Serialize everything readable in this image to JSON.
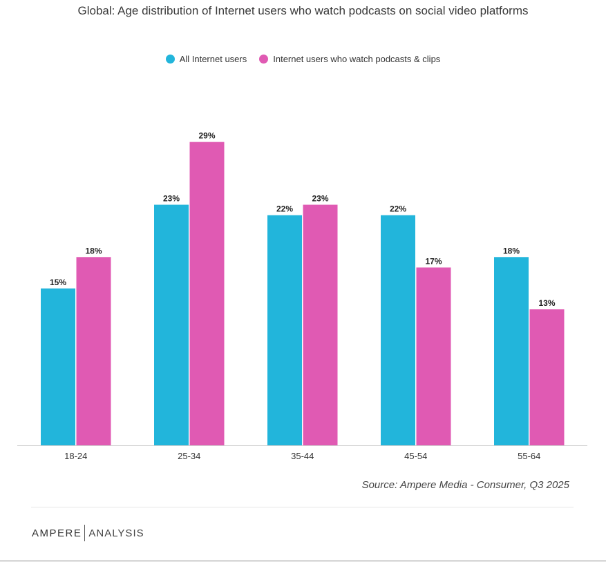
{
  "chart_data": {
    "type": "bar",
    "title": "Global: Age distribution of Internet users who watch podcasts on social video platforms",
    "categories": [
      "18-24",
      "25-34",
      "35-44",
      "45-54",
      "55-64"
    ],
    "series": [
      {
        "name": "All Internet users",
        "color": "#22b5db",
        "values": [
          15,
          23,
          22,
          22,
          18
        ]
      },
      {
        "name": "Internet users who watch podcasts & clips",
        "color": "#e05ab3",
        "values": [
          18,
          29,
          23,
          17,
          13
        ]
      }
    ],
    "value_suffix": "%",
    "xlabel": "",
    "ylabel": "",
    "ylim": [
      0,
      29
    ],
    "grid": false,
    "legend_position": "top-center"
  },
  "source": "Source: Ampere Media - Consumer, Q3 2025",
  "logo": {
    "part_a": "AMPERE",
    "part_b": "ANALYSIS"
  }
}
